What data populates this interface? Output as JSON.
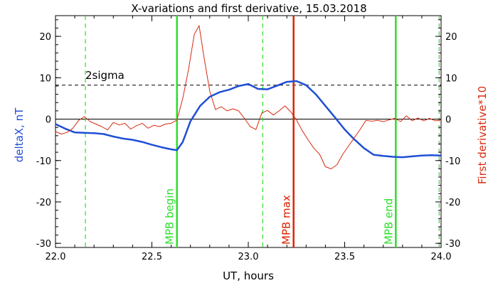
{
  "chart_data": {
    "type": "line",
    "title": "X-variations and first derivative, 15.03.2018",
    "xlabel": "UT, hours",
    "ylabel_left": "deltaX, nT",
    "ylabel_right": "First derivative*10",
    "xlim": [
      22.0,
      24.0
    ],
    "ylim": [
      -31,
      25
    ],
    "x_ticks": [
      22.0,
      22.5,
      23.0,
      23.5,
      24.0
    ],
    "x_tick_labels": [
      "22.0",
      "22.5",
      "23.0",
      "23.5",
      "24.0"
    ],
    "y_ticks": [
      -30,
      -20,
      -10,
      0,
      10,
      20
    ],
    "y_tick_labels": [
      "-30",
      "-20",
      "-10",
      "0",
      "10",
      "20"
    ],
    "grid": false,
    "colors": {
      "deltaX": "#1f4fd6",
      "derivative": "#d82a10",
      "mpb_marker": "#2adf2a",
      "mpb_max_marker": "#dd2200",
      "reference": "#000000"
    },
    "sigma_level": 8.2,
    "sigma_label": "2sigma",
    "zero_level": 0,
    "vertical_markers": [
      {
        "x": 22.63,
        "label": "MPB begin",
        "style": "solid",
        "color": "#2adf2a"
      },
      {
        "x": 23.235,
        "label": "MPB max",
        "style": "solid",
        "color": "#dd2200"
      },
      {
        "x": 23.765,
        "label": "MPB end",
        "style": "solid",
        "color": "#2adf2a"
      },
      {
        "x": 22.155,
        "label": "",
        "style": "dashed",
        "color": "#2adf2a"
      },
      {
        "x": 23.075,
        "label": "",
        "style": "dashed",
        "color": "#2adf2a"
      },
      {
        "x": 23.99,
        "label": "",
        "style": "dashed",
        "color": "#2adf2a"
      }
    ],
    "series": [
      {
        "axis": "left",
        "x": [
          22.0,
          22.05,
          22.1,
          22.15,
          22.2,
          22.25,
          22.3,
          22.35,
          22.4,
          22.45,
          22.5,
          22.55,
          22.6,
          22.63,
          22.66,
          22.7,
          22.75,
          22.8,
          22.85,
          22.9,
          22.95,
          23.0,
          23.05,
          23.1,
          23.15,
          23.2,
          23.25,
          23.3,
          23.35,
          23.4,
          23.45,
          23.5,
          23.55,
          23.6,
          23.65,
          23.7,
          23.75,
          23.8,
          23.85,
          23.9,
          23.95,
          24.0
        ],
        "y": [
          -1.2,
          -2.3,
          -3.2,
          -3.3,
          -3.4,
          -3.6,
          -4.2,
          -4.7,
          -5.0,
          -5.5,
          -6.2,
          -6.8,
          -7.3,
          -7.5,
          -5.5,
          -0.5,
          3.2,
          5.4,
          6.5,
          7.1,
          8.0,
          8.5,
          7.3,
          7.2,
          8.1,
          9.0,
          9.2,
          8.2,
          6.0,
          3.2,
          0.4,
          -2.5,
          -4.9,
          -7.0,
          -8.6,
          -8.9,
          -9.1,
          -9.2,
          -9.0,
          -8.8,
          -8.7,
          -8.8
        ]
      },
      {
        "axis": "right",
        "x": [
          22.0,
          22.03,
          22.06,
          22.09,
          22.12,
          22.15,
          22.18,
          22.21,
          22.24,
          22.27,
          22.3,
          22.33,
          22.36,
          22.39,
          22.42,
          22.45,
          22.48,
          22.51,
          22.54,
          22.57,
          22.6,
          22.63,
          22.66,
          22.69,
          22.72,
          22.745,
          22.77,
          22.8,
          22.83,
          22.86,
          22.89,
          22.92,
          22.95,
          22.98,
          23.01,
          23.04,
          23.07,
          23.1,
          23.13,
          23.16,
          23.19,
          23.22,
          23.25,
          23.28,
          23.31,
          23.34,
          23.37,
          23.4,
          23.43,
          23.46,
          23.49,
          23.52,
          23.55,
          23.58,
          23.61,
          23.64,
          23.67,
          23.7,
          23.73,
          23.76,
          23.79,
          23.82,
          23.85,
          23.88,
          23.91,
          23.94,
          23.97,
          24.0
        ],
        "y": [
          -3.0,
          -3.6,
          -3.2,
          -2.2,
          -0.3,
          0.6,
          -0.6,
          -1.2,
          -1.8,
          -2.6,
          -0.8,
          -1.4,
          -1.0,
          -2.4,
          -1.6,
          -1.0,
          -2.2,
          -1.5,
          -1.8,
          -1.2,
          -1.0,
          -0.2,
          5.0,
          12.0,
          20.5,
          22.6,
          15.0,
          6.8,
          2.3,
          3.0,
          2.0,
          2.5,
          2.0,
          0.2,
          -1.8,
          -2.5,
          1.5,
          2.1,
          1.0,
          2.0,
          3.2,
          1.8,
          -0.2,
          -2.8,
          -5.0,
          -7.0,
          -8.5,
          -11.5,
          -12.0,
          -11.0,
          -8.5,
          -6.5,
          -4.5,
          -2.5,
          -0.3,
          -0.5,
          -0.3,
          -0.6,
          -0.2,
          0.2,
          -0.6,
          0.8,
          -0.4,
          0.3,
          -0.4,
          0.2,
          -0.4,
          -0.2
        ]
      }
    ]
  }
}
